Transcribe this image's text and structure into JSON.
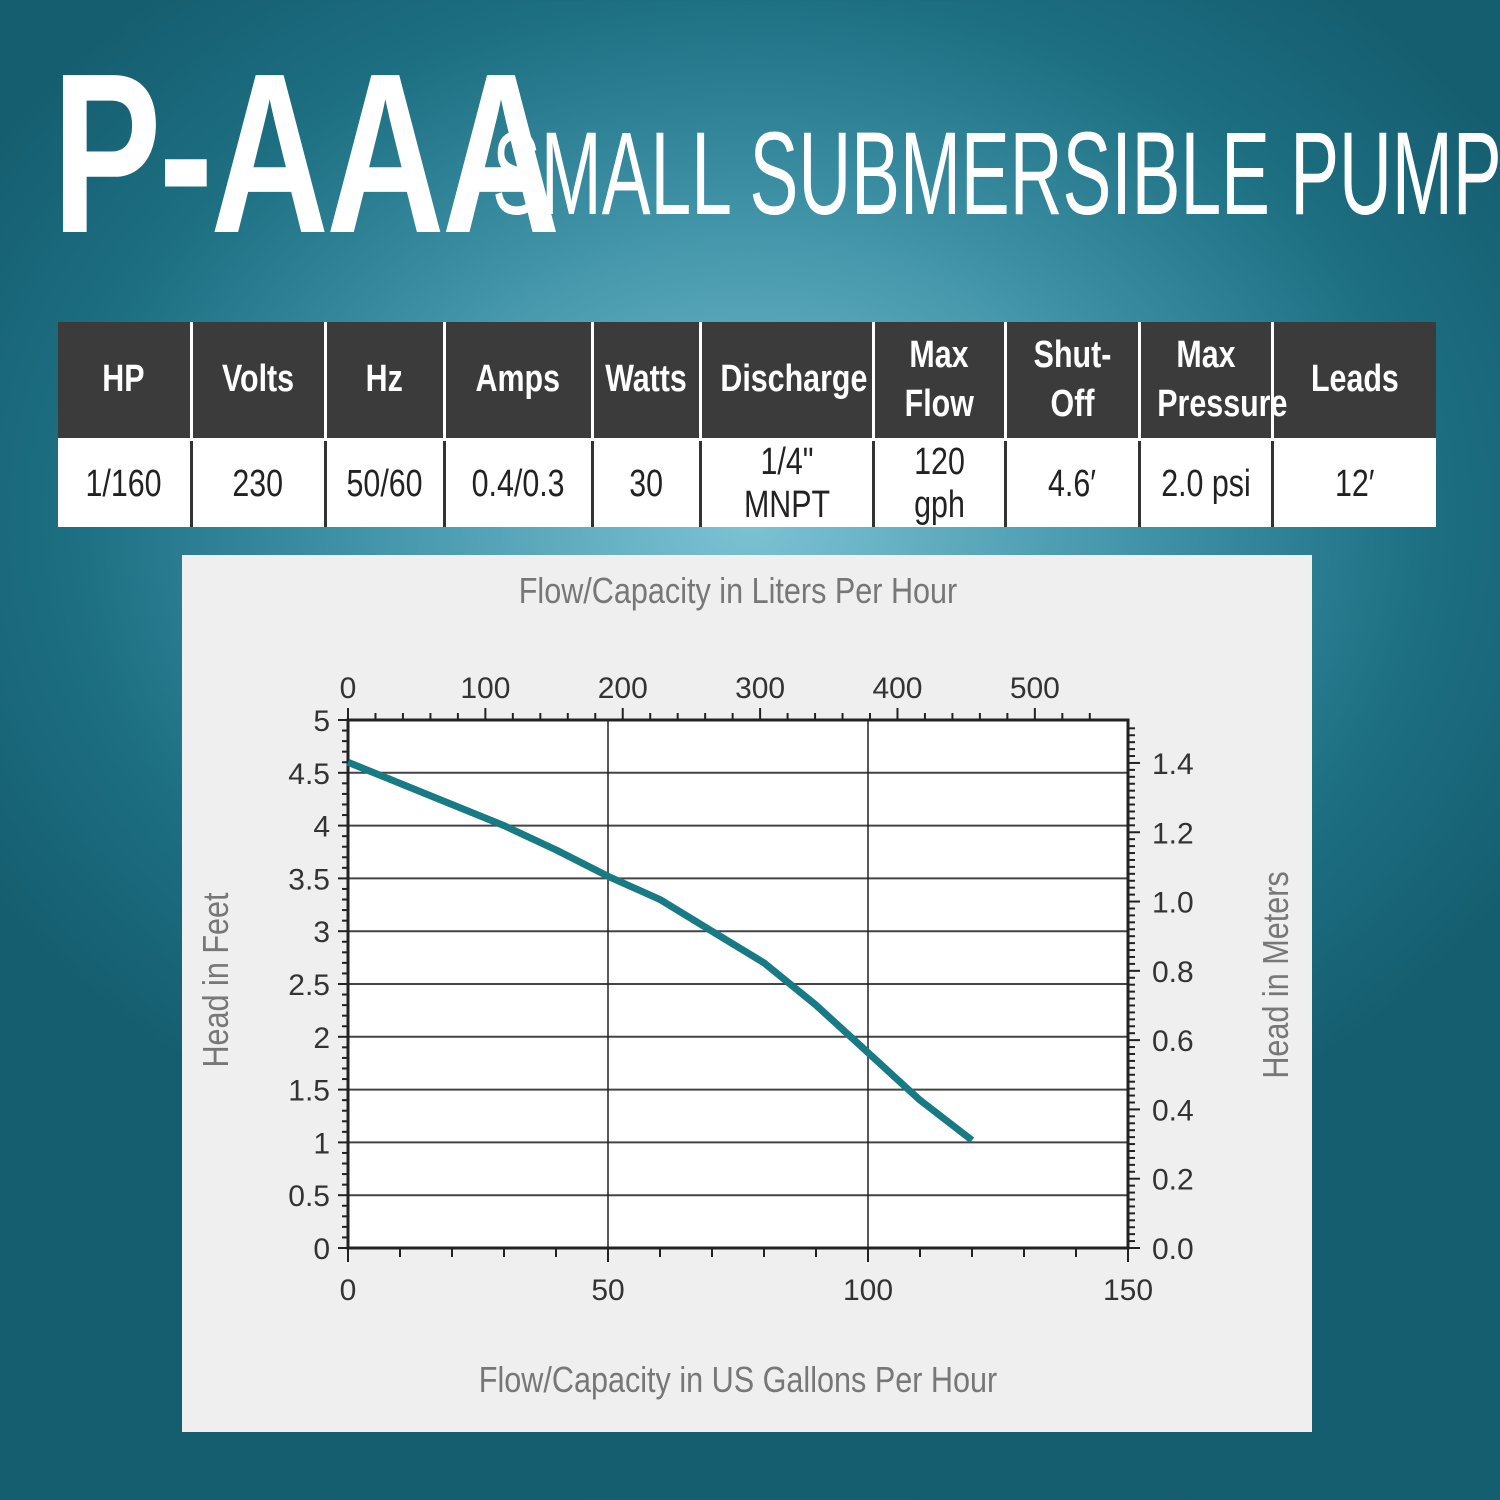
{
  "header": {
    "model": "P-AAA",
    "subtitle": "SMALL SUBMERSIBLE PUMP"
  },
  "specs": {
    "columns": [
      [
        "HP"
      ],
      [
        "Volts"
      ],
      [
        "Hz"
      ],
      [
        "Amps"
      ],
      [
        "Watts"
      ],
      [
        "Discharge"
      ],
      [
        "Max",
        "Flow"
      ],
      [
        "Shut-Off"
      ],
      [
        "Max",
        "Pressure"
      ],
      [
        "Leads"
      ]
    ],
    "values": [
      "1/160",
      "230",
      "50/60",
      "0.4/0.3",
      "30",
      "1/4\" MNPT",
      "120 gph",
      "4.6′",
      "2.0 psi",
      "12′"
    ]
  },
  "chart_data": {
    "type": "line",
    "xlabel": "Flow/Capacity in US Gallons Per Hour",
    "x2label": "Flow/Capacity in Liters Per Hour",
    "ylabel": "Head in Feet",
    "y2label": "Head in Meters",
    "xlim": [
      0,
      150
    ],
    "ylim": [
      0,
      5
    ],
    "x_ticks": [
      "0",
      "50",
      "100",
      "150"
    ],
    "x2_ticks": [
      "0",
      "100",
      "200",
      "300",
      "400",
      "500"
    ],
    "y_ticks": [
      "0",
      "0.5",
      "1",
      "1.5",
      "2",
      "2.5",
      "3",
      "3.5",
      "4",
      "4.5",
      "5"
    ],
    "y2_ticks": [
      "0.0",
      "0.2",
      "0.4",
      "0.6",
      "0.8",
      "1.0",
      "1.2",
      "1.4"
    ],
    "grid": true,
    "line_color": "#177a84",
    "series": [
      {
        "x": [
          0,
          10,
          20,
          30,
          40,
          50,
          60,
          70,
          80,
          90,
          100,
          110,
          120
        ],
        "y": [
          4.6,
          4.4,
          4.2,
          4.0,
          3.77,
          3.52,
          3.3,
          3.0,
          2.7,
          2.3,
          1.85,
          1.4,
          1.02
        ]
      }
    ]
  }
}
